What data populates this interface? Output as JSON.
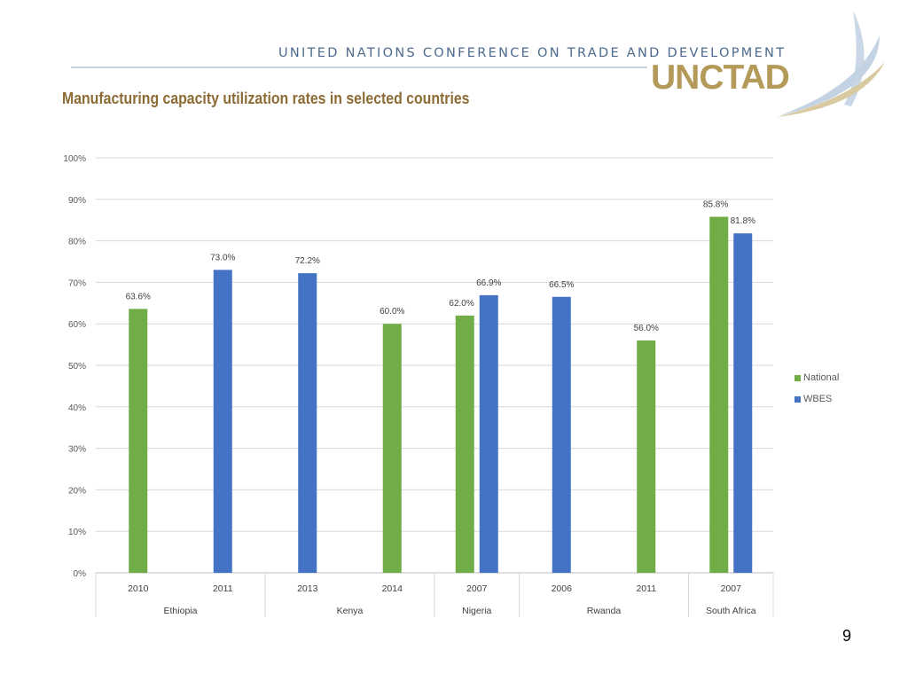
{
  "header": {
    "org_name": "UNITED NATIONS CONFERENCE ON TRADE AND DEVELOPMENT",
    "logo_text": "UNCTAD"
  },
  "page_title": "Manufacturing capacity utilization rates in selected countries",
  "page_number": "9",
  "colors": {
    "national": "#70ad47",
    "wbes": "#4472c4",
    "title": "#8c6b34",
    "logo": "#b49a58"
  },
  "chart_data": {
    "type": "bar",
    "title": "",
    "xlabel": "",
    "ylabel": "",
    "ylim": [
      0,
      100
    ],
    "y_ticks": [
      "0%",
      "10%",
      "20%",
      "30%",
      "40%",
      "50%",
      "60%",
      "70%",
      "80%",
      "90%",
      "100%"
    ],
    "grid": true,
    "legend_position": "right",
    "groups": [
      {
        "label": "Ethiopia",
        "categories": [
          "2010",
          "2011"
        ]
      },
      {
        "label": "Kenya",
        "categories": [
          "2013",
          "2014"
        ]
      },
      {
        "label": "Nigeria",
        "categories": [
          "2007"
        ]
      },
      {
        "label": "Rwanda",
        "categories": [
          "2006",
          "2011"
        ]
      },
      {
        "label": "South Africa",
        "categories": [
          "2007"
        ]
      }
    ],
    "categories": [
      "2010",
      "2011",
      "2013",
      "2014",
      "2007",
      "2006",
      "2011",
      "2007"
    ],
    "series": [
      {
        "name": "National",
        "values": [
          63.6,
          null,
          null,
          60.0,
          62.0,
          null,
          56.0,
          85.8
        ],
        "labels": [
          "63.6%",
          null,
          null,
          "60.0%",
          "62.0%",
          null,
          "56.0%",
          "85.8%"
        ]
      },
      {
        "name": "WBES",
        "values": [
          null,
          73.0,
          72.2,
          null,
          66.9,
          66.5,
          null,
          81.8
        ],
        "labels": [
          null,
          "73.0%",
          "72.2%",
          null,
          "66.9%",
          "66.5%",
          null,
          "81.8%"
        ]
      }
    ]
  }
}
